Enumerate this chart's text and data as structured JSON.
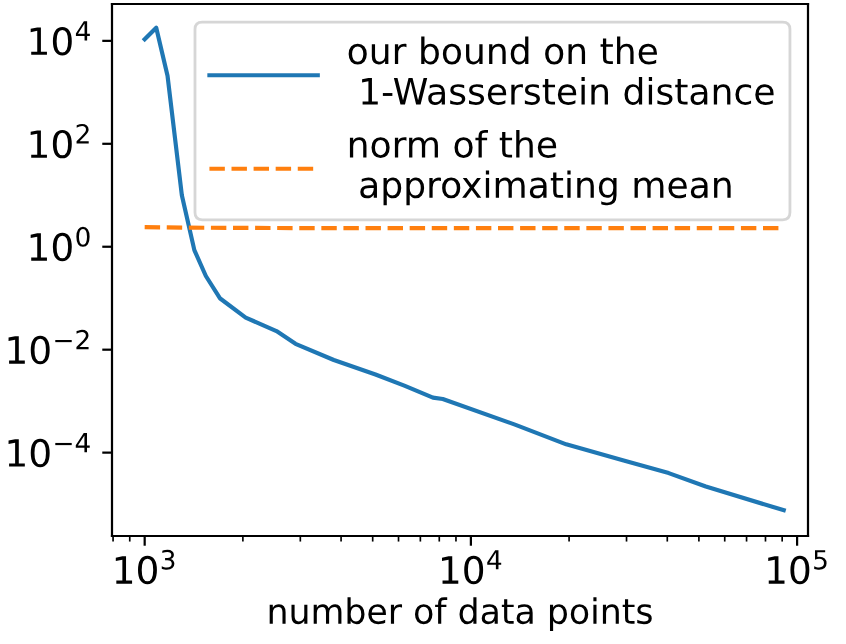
{
  "chart_data": {
    "type": "line",
    "xlabel": "number of data points",
    "log": "xy",
    "legend": "top right",
    "xlim": [
      794,
      108000
    ],
    "ylim": [
      2.4e-06,
      52000.0
    ],
    "xticks": [
      {
        "value": 1000,
        "label": "10$^{3}$"
      },
      {
        "value": 10000,
        "label": "10$^{4}$"
      },
      {
        "value": 100000,
        "label": "10$^{5}$"
      }
    ],
    "yticks": [
      {
        "value": 0.0001,
        "label": "10$^{−4}$"
      },
      {
        "value": 0.01,
        "label": "10$^{−2}$"
      },
      {
        "value": 1,
        "label": "10$^{0}$"
      },
      {
        "value": 100,
        "label": "10$^{2}$"
      },
      {
        "value": 10000,
        "label": "10$^{4}$"
      }
    ],
    "series": [
      {
        "name": "our bound on the\n 1-Wasserstein distance",
        "color": "#1f77b4",
        "line_style": "solid",
        "x": [
          1000,
          1085,
          1175,
          1300,
          1420,
          1540,
          1700,
          2040,
          2535,
          2900,
          3800,
          5100,
          6250,
          7650,
          8200,
          13650,
          19600,
          29400,
          40400,
          52500,
          91000
        ],
        "values": [
          10700,
          18000,
          2100,
          10,
          0.86,
          0.27,
          0.1,
          0.042,
          0.023,
          0.013,
          0.0063,
          0.0033,
          0.002,
          0.00117,
          0.0011,
          0.00035,
          0.000145,
          7e-05,
          4e-05,
          2.2e-05,
          7.6e-06
        ]
      },
      {
        "name": "norm of the\n approximating mean",
        "color": "#ff7f0e",
        "line_style": "dashed",
        "x": [
          1000,
          1300,
          3000,
          10000,
          30000,
          91000
        ],
        "values": [
          2.4,
          2.35,
          2.3,
          2.3,
          2.3,
          2.3
        ]
      }
    ]
  }
}
